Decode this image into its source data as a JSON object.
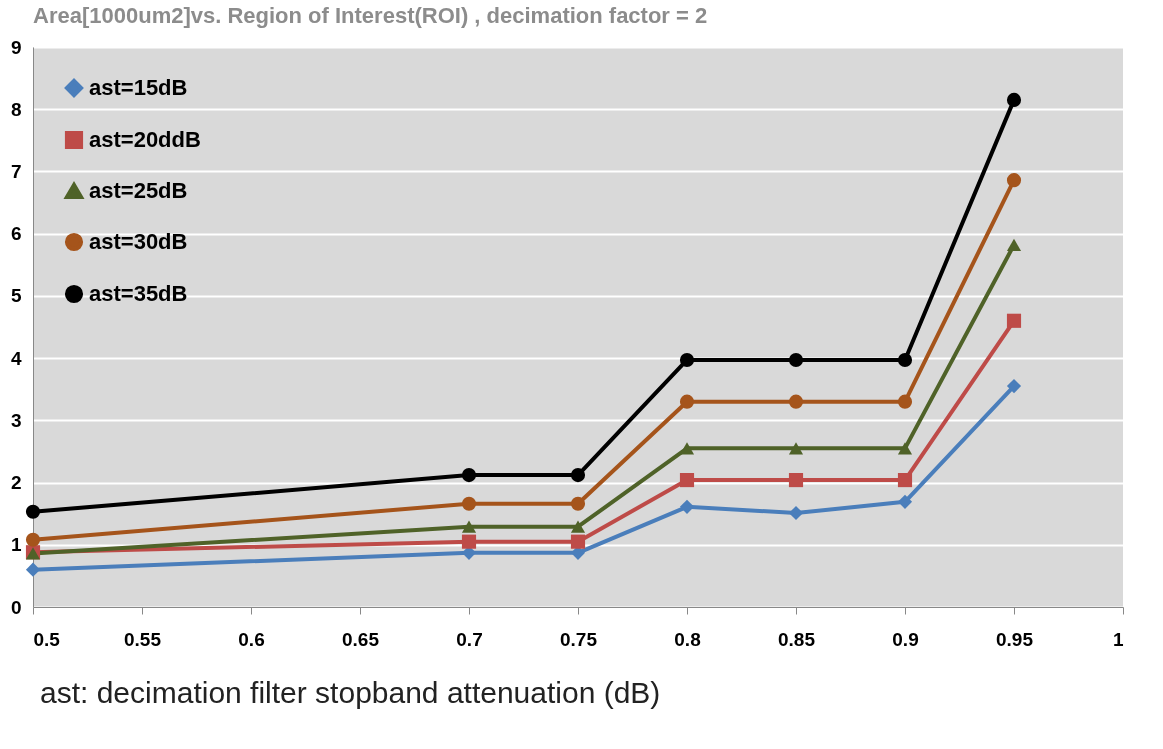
{
  "chart_data": {
    "type": "line",
    "title": "Area[1000um2]vs. Region of Interest(ROI) ,    decimation factor = 2",
    "x": [
      0.5,
      0.7,
      0.75,
      0.8,
      0.85,
      0.9,
      0.95
    ],
    "series": [
      {
        "name": "ast=15dB",
        "color": "#4a7ebb",
        "marker": "diamond",
        "values": [
          0.6,
          0.87,
          0.87,
          1.61,
          1.51,
          1.69,
          3.55
        ]
      },
      {
        "name": "ast=20ddB",
        "color": "#be4b48",
        "marker": "square",
        "values": [
          0.88,
          1.05,
          1.05,
          2.04,
          2.04,
          2.04,
          4.6
        ]
      },
      {
        "name": "ast=25dB",
        "color": "#4f6228",
        "marker": "triangle",
        "values": [
          0.86,
          1.29,
          1.29,
          2.55,
          2.55,
          2.55,
          5.82
        ]
      },
      {
        "name": "ast=30dB",
        "color": "#a5541b",
        "marker": "circle",
        "values": [
          1.08,
          1.66,
          1.66,
          3.3,
          3.3,
          3.3,
          6.86
        ]
      },
      {
        "name": "ast=35dB",
        "color": "#000000",
        "marker": "circle",
        "values": [
          1.53,
          2.12,
          2.12,
          3.97,
          3.97,
          3.97,
          8.15
        ]
      }
    ],
    "xlim": [
      0.5,
      1
    ],
    "xticks": [
      0.5,
      0.55,
      0.6,
      0.65,
      0.7,
      0.75,
      0.8,
      0.85,
      0.9,
      0.95,
      1
    ],
    "ylim": [
      0,
      9
    ],
    "yticks": [
      0,
      1,
      2,
      3,
      4,
      5,
      6,
      7,
      8,
      9
    ],
    "grid": "y",
    "legend": "top left",
    "line_style": "solid",
    "annotations": [
      "ast: decimation filter stopband attenuation (dB)"
    ]
  }
}
